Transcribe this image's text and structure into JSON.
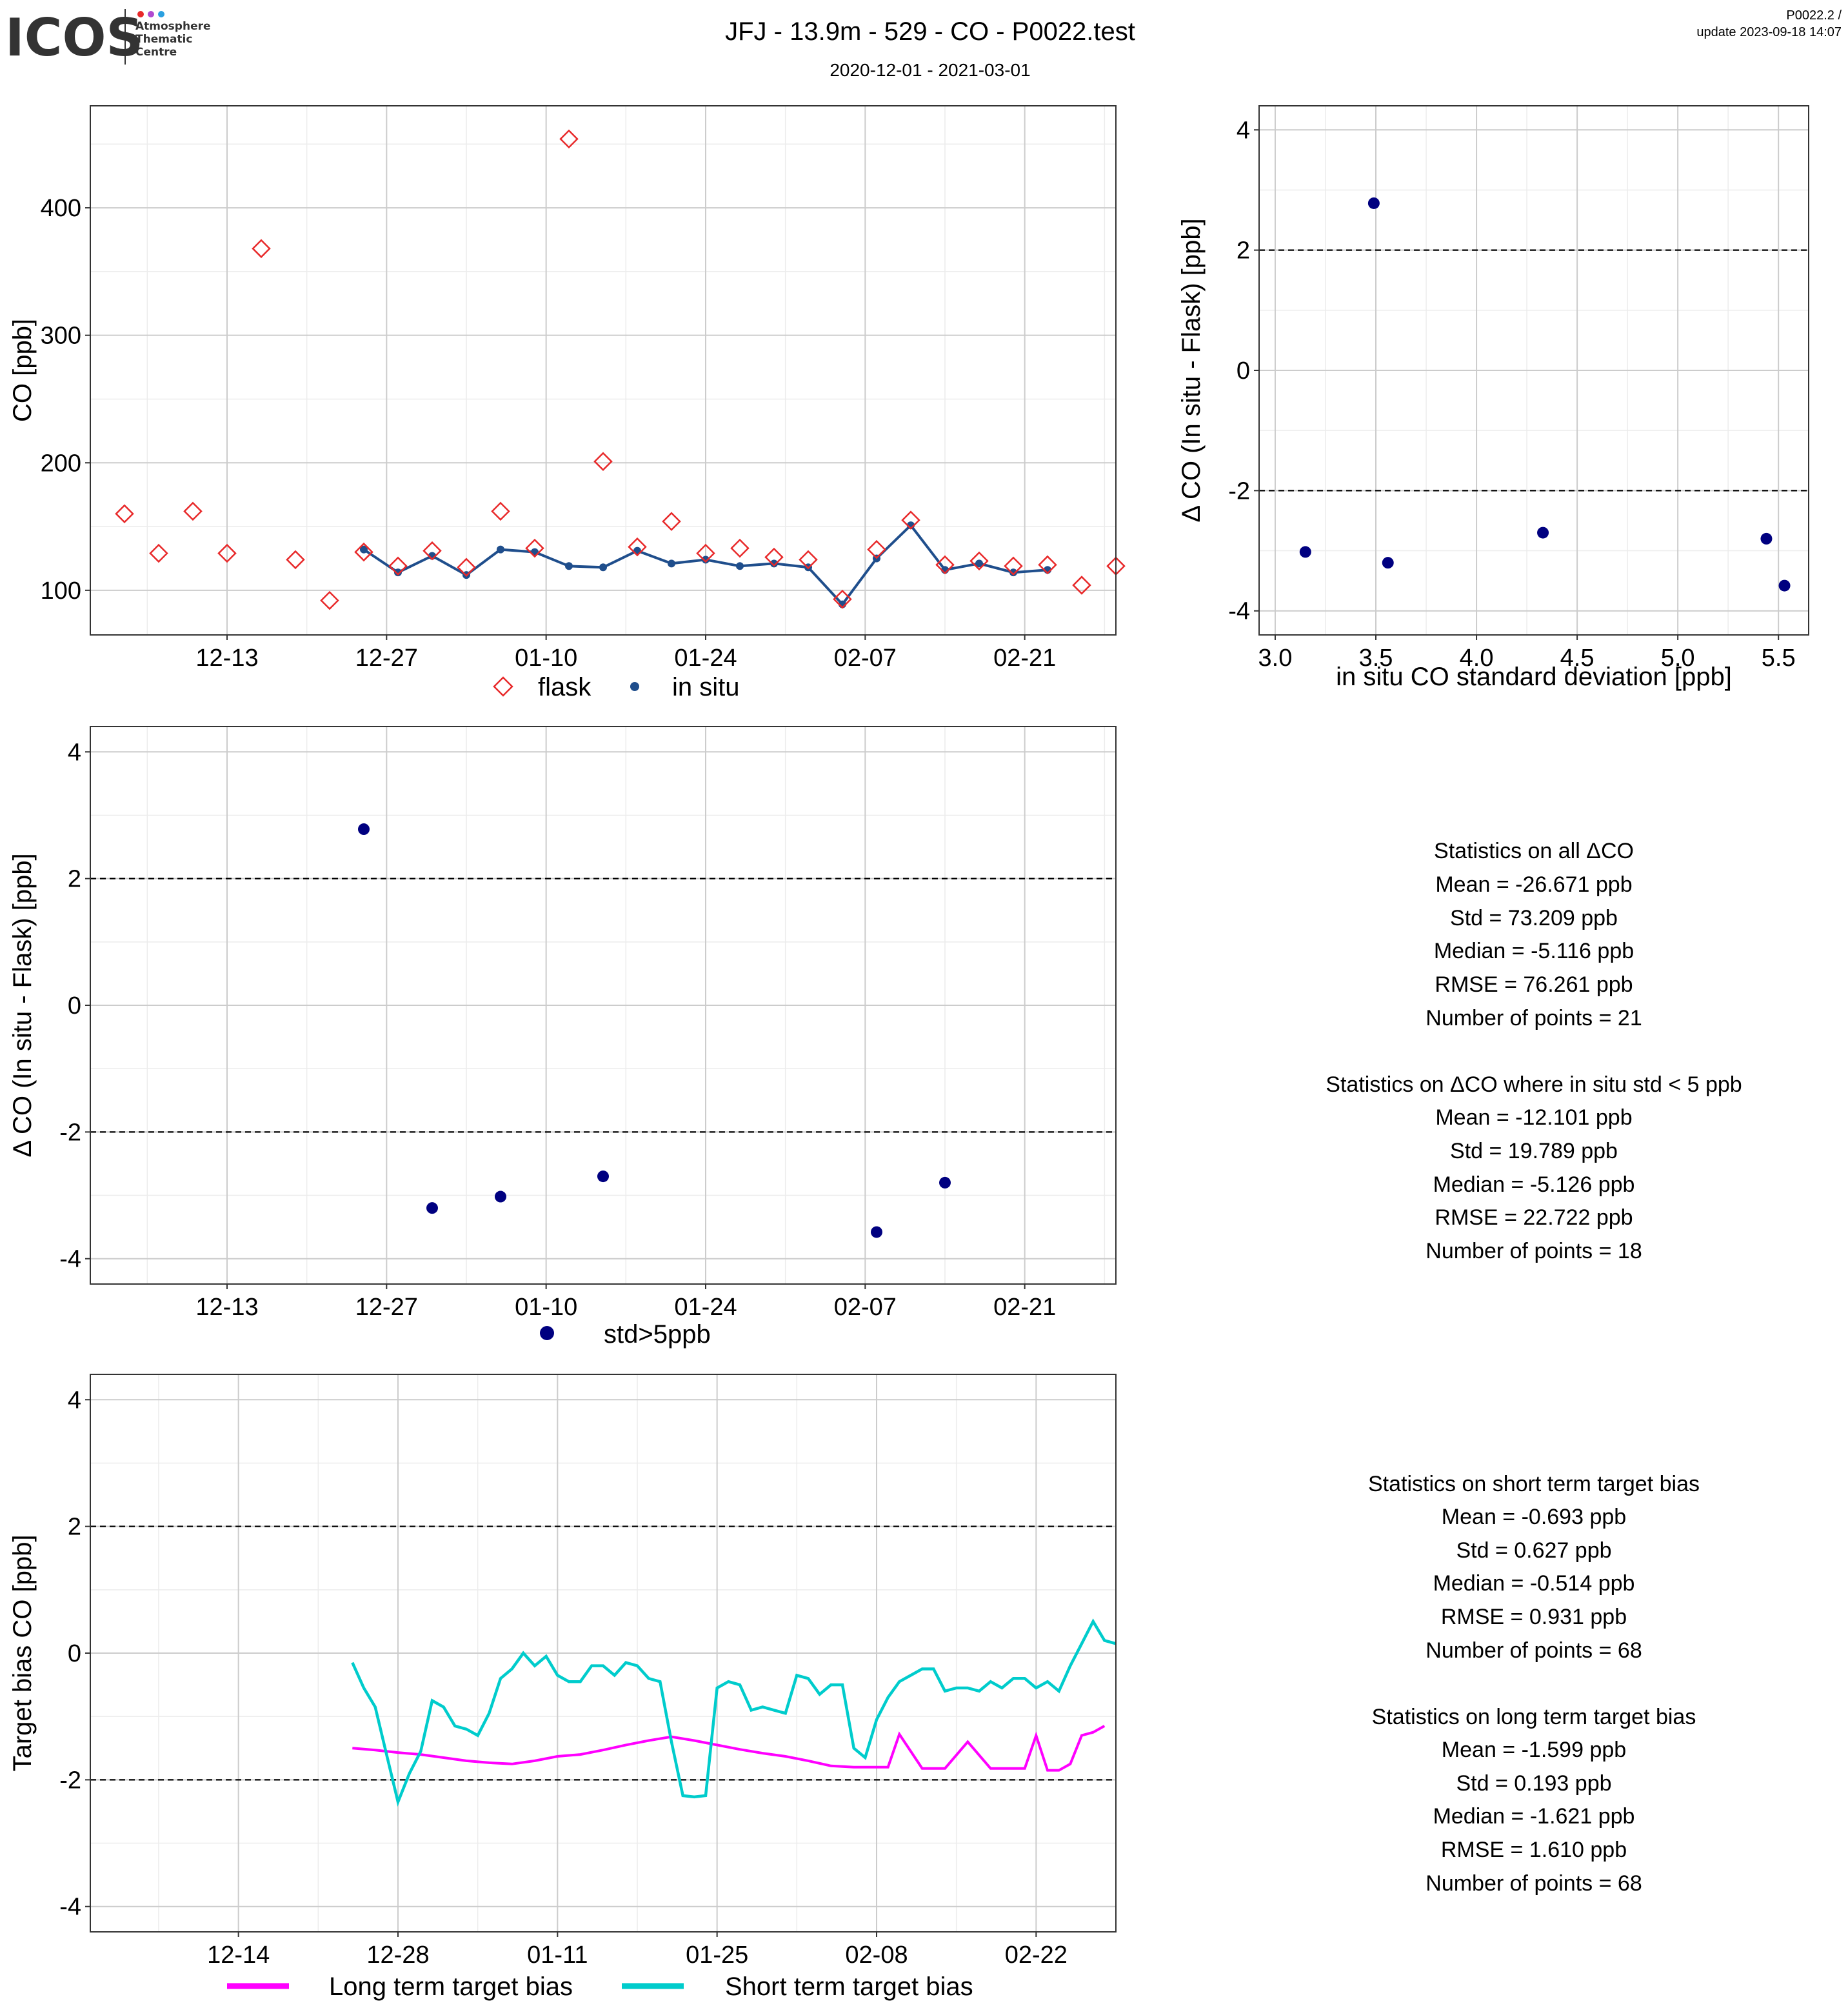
{
  "header": {
    "logo_text": "ICOS",
    "logo_sub": [
      "Atmosphere",
      "Thematic",
      "Centre"
    ],
    "title": "JFJ - 13.9m - 529 - CO - P0022.test",
    "subtitle": "2020-12-01 - 2021-03-01",
    "version": "P0022.2 /",
    "update": "update  2023-09-18 14:07"
  },
  "colors": {
    "flask": "#e8292a",
    "insitu": "#1f4e8c",
    "points": "#000080",
    "long_term": "#ff00ff",
    "short_term": "#00cccc",
    "grid_major": "#cccccc",
    "grid_minor": "#ececec"
  },
  "stats": {
    "block1": {
      "heading": "Statistics on all ΔCO",
      "lines": [
        "Mean =  -26.671 ppb",
        "Std =  73.209 ppb",
        "Median =  -5.116 ppb",
        "RMSE =  76.261 ppb",
        "Number of points =  21"
      ]
    },
    "block2": {
      "heading": "Statistics on ΔCO where in situ std < 5 ppb",
      "lines": [
        "Mean =  -12.101 ppb",
        "Std =  19.789 ppb",
        "Median =  -5.126 ppb",
        "RMSE =  22.722 ppb",
        "Number of points =  18"
      ]
    },
    "block3": {
      "heading": "Statistics on short term target bias",
      "lines": [
        "Mean =  -0.693 ppb",
        "Std =  0.627 ppb",
        "Median =  -0.514 ppb",
        "RMSE =  0.931 ppb",
        "Number of points =  68"
      ]
    },
    "block4": {
      "heading": "Statistics on long term target bias",
      "lines": [
        "Mean =  -1.599 ppb",
        "Std =  0.193 ppb",
        "Median =  -1.621 ppb",
        "RMSE =  1.610 ppb",
        "Number of points =  68"
      ]
    }
  },
  "chart_data": [
    {
      "id": "timeseries",
      "type": "line",
      "xlabel": "",
      "ylabel": "CO [ppb]",
      "x_domain": [
        "2020-12-01",
        "2021-03-01"
      ],
      "ylim": [
        65,
        480
      ],
      "y_ticks": [
        100,
        200,
        300,
        400
      ],
      "x_ticks": [
        {
          "date": "2020-12-13",
          "label": "12-13"
        },
        {
          "date": "2020-12-27",
          "label": "12-27"
        },
        {
          "date": "2021-01-10",
          "label": "01-10"
        },
        {
          "date": "2021-01-24",
          "label": "01-24"
        },
        {
          "date": "2021-02-07",
          "label": "02-07"
        },
        {
          "date": "2021-02-21",
          "label": "02-21"
        }
      ],
      "grid": true,
      "legend": "bottom",
      "series": [
        {
          "name": "flask",
          "marker": "diamond-open",
          "x": [
            "2020-12-04",
            "2020-12-07",
            "2020-12-10",
            "2020-12-13",
            "2020-12-16",
            "2020-12-19",
            "2020-12-22",
            "2020-12-25",
            "2020-12-28",
            "2020-12-31",
            "2021-01-03",
            "2021-01-06",
            "2021-01-09",
            "2021-01-12",
            "2021-01-15",
            "2021-01-18",
            "2021-01-21",
            "2021-01-24",
            "2021-01-27",
            "2021-01-30",
            "2021-02-02",
            "2021-02-05",
            "2021-02-08",
            "2021-02-11",
            "2021-02-14",
            "2021-02-17",
            "2021-02-20",
            "2021-02-23",
            "2021-02-26",
            "2021-03-01"
          ],
          "y": [
            160,
            129,
            162,
            129,
            368,
            124,
            92,
            130,
            119,
            131,
            118,
            162,
            133,
            454,
            201,
            134,
            154,
            129,
            133,
            126,
            124,
            93,
            132,
            155,
            120,
            123,
            119,
            120,
            104,
            119
          ]
        },
        {
          "name": "in situ",
          "marker": "dot-line",
          "x": [
            "2020-12-25",
            "2020-12-28",
            "2020-12-31",
            "2021-01-03",
            "2021-01-06",
            "2021-01-09",
            "2021-01-12",
            "2021-01-15",
            "2021-01-18",
            "2021-01-21",
            "2021-01-24",
            "2021-01-27",
            "2021-01-30",
            "2021-02-02",
            "2021-02-05",
            "2021-02-08",
            "2021-02-11",
            "2021-02-14",
            "2021-02-17",
            "2021-02-20",
            "2021-02-23"
          ],
          "y": [
            132,
            114,
            127,
            112,
            132,
            130,
            119,
            118,
            131,
            121,
            124,
            119,
            121,
            118,
            89,
            125,
            151,
            116,
            121,
            114,
            116
          ]
        }
      ]
    },
    {
      "id": "delta_vs_std",
      "type": "scatter",
      "xlabel": "in situ CO standard deviation [ppb]",
      "ylabel": "Δ CO (In situ - Flask) [ppb]",
      "xlim": [
        2.92,
        5.65
      ],
      "ylim": [
        -4.4,
        4.4
      ],
      "x_ticks": [
        3.0,
        3.5,
        4.0,
        4.5,
        5.0,
        5.5
      ],
      "y_ticks": [
        -4,
        -2,
        0,
        2,
        4
      ],
      "hlines": [
        -2,
        2
      ],
      "grid": true,
      "series": [
        {
          "name": "",
          "x": [
            3.15,
            3.49,
            3.56,
            4.33,
            5.44,
            5.53
          ],
          "y": [
            -3.02,
            2.78,
            -3.2,
            -2.7,
            -2.8,
            -3.58
          ]
        }
      ]
    },
    {
      "id": "delta_vs_time",
      "type": "scatter",
      "xlabel": "",
      "ylabel": "Δ CO (In situ - Flask) [ppb]",
      "x_domain": [
        "2020-12-01",
        "2021-03-01"
      ],
      "ylim": [
        -4.4,
        4.4
      ],
      "y_ticks": [
        -4,
        -2,
        0,
        2,
        4
      ],
      "x_ticks": [
        {
          "date": "2020-12-13",
          "label": "12-13"
        },
        {
          "date": "2020-12-27",
          "label": "12-27"
        },
        {
          "date": "2021-01-10",
          "label": "01-10"
        },
        {
          "date": "2021-01-24",
          "label": "01-24"
        },
        {
          "date": "2021-02-07",
          "label": "02-07"
        },
        {
          "date": "2021-02-21",
          "label": "02-21"
        }
      ],
      "hlines": [
        -2,
        2
      ],
      "grid": true,
      "legend": "bottom",
      "series": [
        {
          "name": "std>5ppb",
          "x": [
            "2020-12-25",
            "2020-12-31",
            "2021-01-06",
            "2021-01-15",
            "2021-02-08",
            "2021-02-14"
          ],
          "y": [
            2.78,
            -3.2,
            -3.02,
            -2.7,
            -3.58,
            -2.8
          ]
        }
      ]
    },
    {
      "id": "target_bias",
      "type": "line",
      "xlabel": "",
      "ylabel": "Target bias CO [ppb]",
      "x_domain": [
        "2020-12-01",
        "2021-03-01"
      ],
      "ylim": [
        -4.4,
        4.4
      ],
      "y_ticks": [
        -4,
        -2,
        0,
        2,
        4
      ],
      "x_ticks": [
        {
          "date": "2020-12-14",
          "label": "12-14"
        },
        {
          "date": "2020-12-28",
          "label": "12-28"
        },
        {
          "date": "2021-01-11",
          "label": "01-11"
        },
        {
          "date": "2021-01-25",
          "label": "01-25"
        },
        {
          "date": "2021-02-08",
          "label": "02-08"
        },
        {
          "date": "2021-02-22",
          "label": "02-22"
        }
      ],
      "hlines": [
        -2,
        2
      ],
      "grid": true,
      "legend": "bottom",
      "series": [
        {
          "name": "Long term target bias",
          "x": [
            "2020-12-24",
            "2020-12-26",
            "2020-12-28",
            "2020-12-30",
            "2021-01-01",
            "2021-01-03",
            "2021-01-05",
            "2021-01-07",
            "2021-01-09",
            "2021-01-11",
            "2021-01-13",
            "2021-01-15",
            "2021-01-17",
            "2021-01-19",
            "2021-01-21",
            "2021-01-23",
            "2021-01-25",
            "2021-01-27",
            "2021-01-29",
            "2021-01-31",
            "2021-02-02",
            "2021-02-04",
            "2021-02-06",
            "2021-02-08",
            "2021-02-09",
            "2021-02-10",
            "2021-02-12",
            "2021-02-13",
            "2021-02-14",
            "2021-02-16",
            "2021-02-18",
            "2021-02-20",
            "2021-02-21",
            "2021-02-22",
            "2021-02-23",
            "2021-02-24",
            "2021-02-25",
            "2021-02-26",
            "2021-02-27",
            "2021-02-28"
          ],
          "y": [
            -1.5,
            -1.53,
            -1.57,
            -1.6,
            -1.65,
            -1.7,
            -1.73,
            -1.75,
            -1.7,
            -1.63,
            -1.6,
            -1.53,
            -1.45,
            -1.38,
            -1.32,
            -1.38,
            -1.45,
            -1.52,
            -1.58,
            -1.63,
            -1.7,
            -1.78,
            -1.8,
            -1.8,
            -1.8,
            -1.28,
            -1.82,
            -1.82,
            -1.82,
            -1.4,
            -1.82,
            -1.82,
            -1.82,
            -1.3,
            -1.85,
            -1.85,
            -1.75,
            -1.3,
            -1.25,
            -1.15
          ]
        },
        {
          "name": "Short term target bias",
          "x": [
            "2020-12-24",
            "2020-12-25",
            "2020-12-26",
            "2020-12-27",
            "2020-12-28",
            "2020-12-29",
            "2020-12-30",
            "2020-12-31",
            "2021-01-01",
            "2021-01-02",
            "2021-01-03",
            "2021-01-04",
            "2021-01-05",
            "2021-01-06",
            "2021-01-07",
            "2021-01-08",
            "2021-01-09",
            "2021-01-10",
            "2021-01-11",
            "2021-01-12",
            "2021-01-13",
            "2021-01-14",
            "2021-01-15",
            "2021-01-16",
            "2021-01-17",
            "2021-01-18",
            "2021-01-19",
            "2021-01-20",
            "2021-01-21",
            "2021-01-22",
            "2021-01-23",
            "2021-01-24",
            "2021-01-25",
            "2021-01-26",
            "2021-01-27",
            "2021-01-28",
            "2021-01-29",
            "2021-01-30",
            "2021-01-31",
            "2021-02-01",
            "2021-02-02",
            "2021-02-03",
            "2021-02-04",
            "2021-02-05",
            "2021-02-06",
            "2021-02-07",
            "2021-02-08",
            "2021-02-09",
            "2021-02-10",
            "2021-02-11",
            "2021-02-12",
            "2021-02-13",
            "2021-02-14",
            "2021-02-15",
            "2021-02-16",
            "2021-02-17",
            "2021-02-18",
            "2021-02-19",
            "2021-02-20",
            "2021-02-21",
            "2021-02-22",
            "2021-02-23",
            "2021-02-24",
            "2021-02-25",
            "2021-02-26",
            "2021-02-27",
            "2021-02-28",
            "2021-03-01"
          ],
          "y": [
            -0.15,
            -0.55,
            -0.85,
            -1.6,
            -2.35,
            -1.9,
            -1.55,
            -0.75,
            -0.85,
            -1.15,
            -1.2,
            -1.3,
            -0.95,
            -0.4,
            -0.25,
            0.0,
            -0.2,
            -0.05,
            -0.35,
            -0.45,
            -0.45,
            -0.2,
            -0.2,
            -0.35,
            -0.15,
            -0.2,
            -0.4,
            -0.45,
            -1.4,
            -2.25,
            -2.27,
            -2.25,
            -0.55,
            -0.45,
            -0.5,
            -0.9,
            -0.85,
            -0.9,
            -0.95,
            -0.35,
            -0.4,
            -0.65,
            -0.5,
            -0.5,
            -1.5,
            -1.65,
            -1.05,
            -0.7,
            -0.45,
            -0.35,
            -0.25,
            -0.25,
            -0.6,
            -0.55,
            -0.55,
            -0.6,
            -0.45,
            -0.55,
            -0.4,
            -0.4,
            -0.55,
            -0.45,
            -0.6,
            -0.2,
            0.15,
            0.5,
            0.2,
            0.15
          ]
        }
      ]
    }
  ]
}
